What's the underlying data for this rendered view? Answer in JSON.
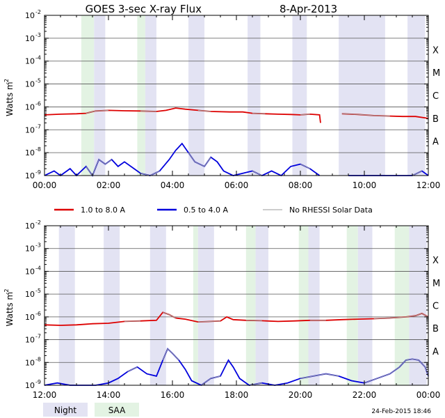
{
  "chart_data": {
    "type": "line",
    "title": "GOES 3-sec X-ray Flux",
    "date": "8-Apr-2013",
    "ylabel": "Watts m",
    "ylabel_sup": "-2",
    "yscale": "log",
    "ylim_exp": [
      -9,
      -2
    ],
    "ytick_exponents": [
      -9,
      -8,
      -7,
      -6,
      -5,
      -4,
      -3,
      -2
    ],
    "ytick_base": "10",
    "flare_classes": [
      {
        "label": "A",
        "exp": -8
      },
      {
        "label": "B",
        "exp": -7
      },
      {
        "label": "C",
        "exp": -6
      },
      {
        "label": "M",
        "exp": -5
      },
      {
        "label": "X",
        "exp": -4
      }
    ],
    "legend": [
      {
        "name": "1.0 to 8.0 A",
        "color": "#dd0000"
      },
      {
        "name": "0.5 to 4.0 A",
        "color": "#0000dd"
      },
      {
        "name": "No RHESSI Solar Data",
        "color": "#999999"
      }
    ],
    "band_legend": [
      {
        "name": "Night",
        "color": "#e3e3f3"
      },
      {
        "name": "SAA",
        "color": "#e3f3e3"
      }
    ],
    "footer": "24-Feb-2015 18:46",
    "panels": [
      {
        "xlim": [
          0,
          12
        ],
        "xticks": [
          "00:00",
          "02:00",
          "04:00",
          "06:00",
          "08:00",
          "10:00",
          "12:00"
        ],
        "night": [
          [
            1.55,
            1.9
          ],
          [
            3.15,
            3.5
          ],
          [
            4.5,
            5.0
          ],
          [
            6.35,
            6.75
          ],
          [
            7.75,
            8.2
          ],
          [
            9.2,
            10.65
          ],
          [
            11.35,
            11.9
          ]
        ],
        "saa": [
          [
            1.15,
            1.55
          ],
          [
            2.9,
            3.15
          ],
          [
            4.75,
            5.0
          ],
          [
            6.55,
            6.75
          ],
          [
            8.05,
            8.2
          ]
        ],
        "gray_segments": [
          [
            1.3,
            2.2
          ],
          [
            3.0,
            3.6
          ],
          [
            4.5,
            5.2
          ],
          [
            6.4,
            6.9
          ],
          [
            7.8,
            8.3
          ],
          [
            9.2,
            10.9
          ],
          [
            11.3,
            11.9
          ]
        ],
        "long": [
          [
            0.0,
            -6.35
          ],
          [
            0.5,
            -6.32
          ],
          [
            1.0,
            -6.3
          ],
          [
            1.3,
            -6.28
          ],
          [
            1.6,
            -6.18
          ],
          [
            2.0,
            -6.15
          ],
          [
            2.5,
            -6.17
          ],
          [
            3.0,
            -6.18
          ],
          [
            3.5,
            -6.2
          ],
          [
            3.8,
            -6.15
          ],
          [
            4.1,
            -6.05
          ],
          [
            4.4,
            -6.1
          ],
          [
            4.8,
            -6.15
          ],
          [
            5.2,
            -6.2
          ],
          [
            5.8,
            -6.22
          ],
          [
            6.2,
            -6.22
          ],
          [
            6.5,
            -6.28
          ],
          [
            6.9,
            -6.3
          ],
          [
            7.3,
            -6.32
          ],
          [
            7.7,
            -6.33
          ],
          [
            8.0,
            -6.35
          ],
          [
            8.3,
            -6.32
          ],
          [
            8.6,
            -6.35
          ],
          [
            8.63,
            -6.7
          ],
          null,
          [
            9.3,
            -6.3
          ],
          [
            9.8,
            -6.33
          ],
          [
            10.3,
            -6.38
          ],
          [
            10.8,
            -6.4
          ],
          [
            11.2,
            -6.42
          ],
          [
            11.6,
            -6.42
          ],
          [
            12.0,
            -6.5
          ]
        ],
        "short": [
          [
            0.0,
            -9.0
          ],
          [
            0.3,
            -8.8
          ],
          [
            0.5,
            -9.0
          ],
          [
            0.8,
            -8.7
          ],
          [
            1.0,
            -9.0
          ],
          [
            1.3,
            -8.6
          ],
          [
            1.5,
            -9.0
          ],
          [
            1.7,
            -8.3
          ],
          [
            1.9,
            -8.5
          ],
          [
            2.1,
            -8.3
          ],
          [
            2.3,
            -8.6
          ],
          [
            2.5,
            -8.4
          ],
          [
            2.8,
            -8.7
          ],
          [
            3.0,
            -8.9
          ],
          [
            3.3,
            -9.0
          ],
          [
            3.6,
            -8.8
          ],
          [
            3.9,
            -8.3
          ],
          [
            4.1,
            -7.9
          ],
          [
            4.3,
            -7.6
          ],
          [
            4.5,
            -8.0
          ],
          [
            4.7,
            -8.4
          ],
          [
            5.0,
            -8.6
          ],
          [
            5.2,
            -8.2
          ],
          [
            5.4,
            -8.4
          ],
          [
            5.6,
            -8.8
          ],
          [
            5.9,
            -9.0
          ],
          [
            6.2,
            -8.9
          ],
          [
            6.5,
            -8.8
          ],
          [
            6.8,
            -9.0
          ],
          [
            7.1,
            -8.8
          ],
          [
            7.4,
            -9.0
          ],
          [
            7.7,
            -8.6
          ],
          [
            8.0,
            -8.5
          ],
          [
            8.3,
            -8.7
          ],
          [
            8.6,
            -9.0
          ],
          null,
          [
            9.5,
            -9.0
          ],
          [
            10.0,
            -9.0
          ],
          [
            10.5,
            -9.0
          ],
          [
            11.0,
            -9.0
          ],
          [
            11.5,
            -9.0
          ],
          [
            11.8,
            -8.8
          ],
          [
            12.0,
            -9.0
          ]
        ]
      },
      {
        "xlim": [
          12,
          24
        ],
        "xticks": [
          "12:00",
          "14:00",
          "16:00",
          "18:00",
          "20:00",
          "22:00",
          "00:00"
        ],
        "night": [
          [
            12.45,
            12.95
          ],
          [
            13.85,
            14.35
          ],
          [
            15.3,
            15.8
          ],
          [
            16.8,
            17.3
          ],
          [
            18.6,
            19.0
          ],
          [
            20.25,
            20.6
          ],
          [
            21.8,
            22.25
          ],
          [
            23.4,
            23.95
          ]
        ],
        "saa": [
          [
            16.65,
            16.8
          ],
          [
            18.3,
            18.6
          ],
          [
            19.95,
            20.25
          ],
          [
            21.45,
            21.8
          ],
          [
            22.95,
            23.4
          ]
        ],
        "gray_segments": [
          [
            14.4,
            15.0
          ],
          [
            15.6,
            16.3
          ],
          [
            16.7,
            17.6
          ],
          [
            18.3,
            19.1
          ],
          [
            19.9,
            21.2
          ],
          [
            21.9,
            24.0
          ]
        ],
        "long": [
          [
            12.0,
            -6.35
          ],
          [
            12.5,
            -6.37
          ],
          [
            13.0,
            -6.35
          ],
          [
            13.5,
            -6.3
          ],
          [
            14.0,
            -6.28
          ],
          [
            14.5,
            -6.2
          ],
          [
            15.0,
            -6.18
          ],
          [
            15.5,
            -6.15
          ],
          [
            15.7,
            -5.8
          ],
          [
            15.9,
            -5.9
          ],
          [
            16.1,
            -6.05
          ],
          [
            16.4,
            -6.1
          ],
          [
            16.8,
            -6.22
          ],
          [
            17.2,
            -6.2
          ],
          [
            17.5,
            -6.18
          ],
          [
            17.7,
            -6.0
          ],
          [
            17.9,
            -6.12
          ],
          [
            18.3,
            -6.15
          ],
          [
            18.8,
            -6.17
          ],
          [
            19.3,
            -6.2
          ],
          [
            19.8,
            -6.18
          ],
          [
            20.3,
            -6.15
          ],
          [
            20.8,
            -6.15
          ],
          [
            21.3,
            -6.12
          ],
          [
            21.8,
            -6.1
          ],
          [
            22.3,
            -6.08
          ],
          [
            22.8,
            -6.05
          ],
          [
            23.3,
            -6.0
          ],
          [
            23.6,
            -5.95
          ],
          [
            23.8,
            -5.85
          ],
          [
            24.0,
            -6.0
          ]
        ],
        "short": [
          [
            12.0,
            -9.0
          ],
          [
            12.4,
            -8.9
          ],
          [
            12.8,
            -9.0
          ],
          [
            13.2,
            -9.0
          ],
          [
            13.6,
            -9.0
          ],
          [
            14.0,
            -8.9
          ],
          [
            14.3,
            -8.7
          ],
          [
            14.6,
            -8.4
          ],
          [
            14.9,
            -8.2
          ],
          [
            15.2,
            -8.5
          ],
          [
            15.5,
            -8.6
          ],
          [
            15.7,
            -7.9
          ],
          [
            15.85,
            -7.4
          ],
          [
            16.0,
            -7.6
          ],
          [
            16.2,
            -7.9
          ],
          [
            16.4,
            -8.3
          ],
          [
            16.6,
            -8.8
          ],
          [
            16.9,
            -9.0
          ],
          [
            17.2,
            -8.7
          ],
          [
            17.5,
            -8.6
          ],
          [
            17.75,
            -7.9
          ],
          [
            17.9,
            -8.2
          ],
          [
            18.1,
            -8.7
          ],
          [
            18.4,
            -9.0
          ],
          [
            18.8,
            -8.9
          ],
          [
            19.2,
            -9.0
          ],
          [
            19.6,
            -8.9
          ],
          [
            20.0,
            -8.7
          ],
          [
            20.4,
            -8.6
          ],
          [
            20.8,
            -8.5
          ],
          [
            21.2,
            -8.6
          ],
          [
            21.6,
            -8.8
          ],
          [
            22.0,
            -8.9
          ],
          [
            22.4,
            -8.7
          ],
          [
            22.8,
            -8.5
          ],
          [
            23.1,
            -8.2
          ],
          [
            23.3,
            -7.9
          ],
          [
            23.5,
            -7.85
          ],
          [
            23.7,
            -7.9
          ],
          [
            23.9,
            -8.2
          ],
          [
            24.0,
            -8.6
          ]
        ]
      }
    ]
  }
}
